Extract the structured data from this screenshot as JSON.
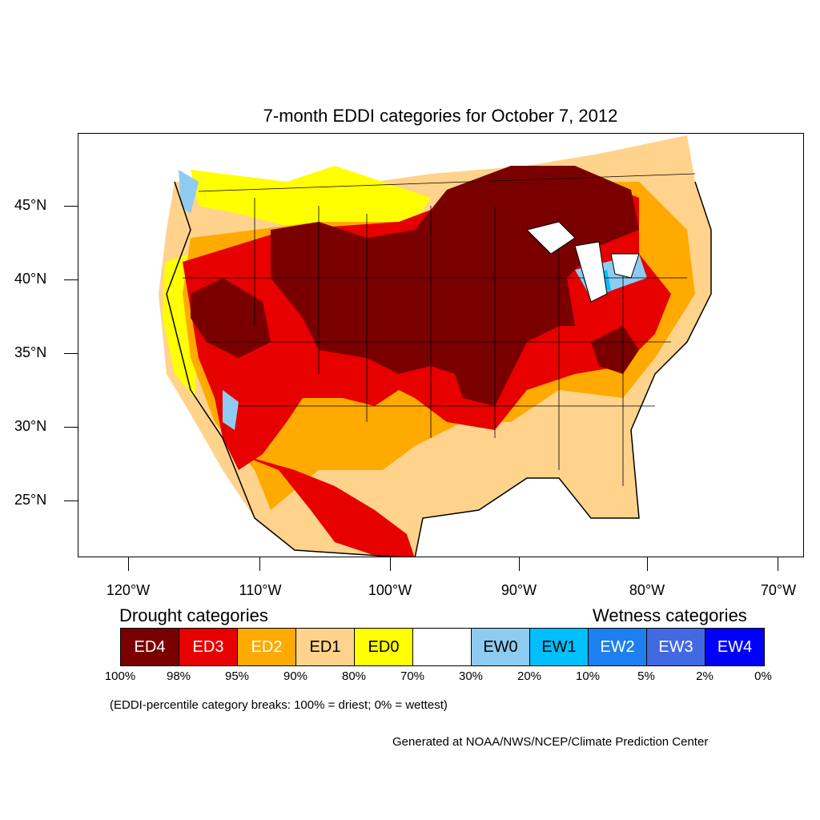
{
  "map": {
    "title": "7-month EDDI categories for October 7, 2012",
    "lat_labels": [
      "45°N",
      "40°N",
      "35°N",
      "30°N",
      "25°N"
    ],
    "lon_labels": [
      "120°W",
      "110°W",
      "100°W",
      "90°W",
      "80°W",
      "70°W"
    ]
  },
  "legend": {
    "drought_heading": "Drought categories",
    "wetness_heading": "Wetness categories",
    "categories": [
      {
        "label": "ED4",
        "color": "#7a0000",
        "text_color": "#ffffff"
      },
      {
        "label": "ED3",
        "color": "#e60000",
        "text_color": "#ffffff"
      },
      {
        "label": "ED2",
        "color": "#ffaa00",
        "text_color": "#ffffff"
      },
      {
        "label": "ED1",
        "color": "#ffd38c",
        "text_color": "#000000"
      },
      {
        "label": "ED0",
        "color": "#ffff00",
        "text_color": "#000000"
      },
      {
        "label": "",
        "color": "#ffffff",
        "text_color": "#000000"
      },
      {
        "label": "EW0",
        "color": "#8ecbf0",
        "text_color": "#000000"
      },
      {
        "label": "EW1",
        "color": "#00bfff",
        "text_color": "#000000"
      },
      {
        "label": "EW2",
        "color": "#1e7ff0",
        "text_color": "#ffffff"
      },
      {
        "label": "EW3",
        "color": "#4169e1",
        "text_color": "#ffffff"
      },
      {
        "label": "EW4",
        "color": "#0000ff",
        "text_color": "#ffffff"
      }
    ],
    "percent_breaks": [
      "100%",
      "98%",
      "95%",
      "90%",
      "80%",
      "70%",
      "30%",
      "20%",
      "10%",
      "5%",
      "2%",
      "0%"
    ],
    "note": "(EDDI-percentile category breaks: 100% = driest; 0% = wettest)"
  },
  "footer": {
    "credit": "Generated at NOAA/NWS/NCEP/Climate Prediction Center"
  }
}
